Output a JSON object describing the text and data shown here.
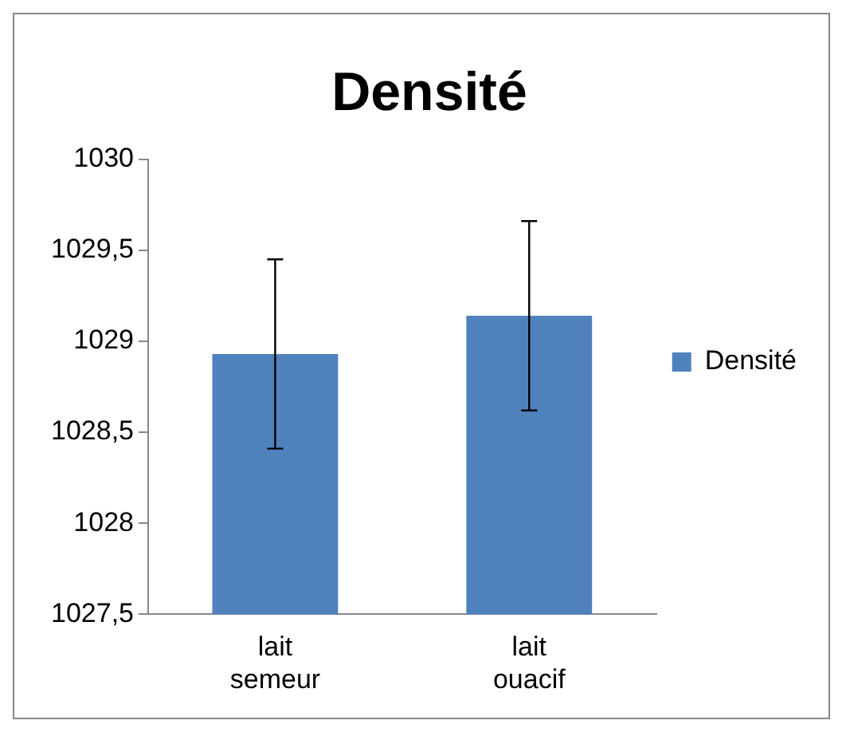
{
  "chart_data": {
    "type": "bar",
    "title": "Densité",
    "categories": [
      "lait semeur",
      "lait ouacif"
    ],
    "series": [
      {
        "name": "Densité",
        "color": "#4f81bd",
        "values": [
          1028.93,
          1029.14
        ],
        "errors": [
          0.52,
          0.52
        ]
      }
    ],
    "ylim": [
      1027.5,
      1030
    ],
    "yticks": [
      {
        "value": 1027.5,
        "label": "1027,5"
      },
      1028,
      {
        "value": 1028.5,
        "label": "1028,5"
      },
      1029,
      {
        "value": 1029.5,
        "label": "1029,5"
      },
      1030
    ],
    "grid": false,
    "legend": "right"
  }
}
